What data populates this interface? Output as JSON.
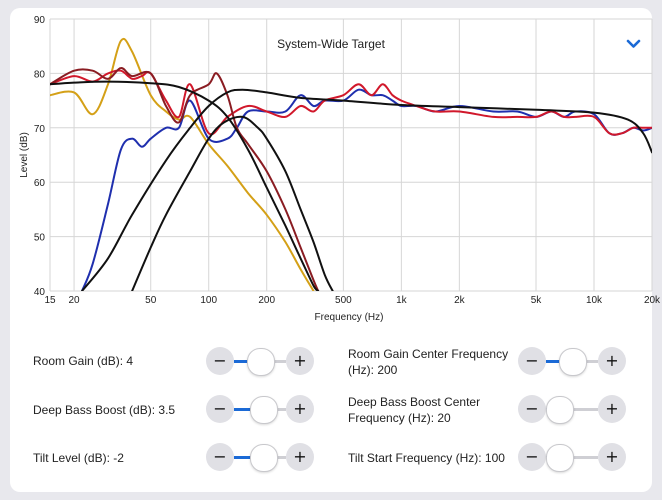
{
  "chart_data": {
    "type": "line",
    "title": "System-Wide Target",
    "xlabel": "Frequency (Hz)",
    "ylabel": "Level (dB)",
    "xscale": "log",
    "xlim": [
      15,
      20000
    ],
    "ylim": [
      40,
      90
    ],
    "x_ticks": [
      15,
      20,
      50,
      100,
      200,
      500,
      1000,
      2000,
      5000,
      10000,
      20000
    ],
    "x_tick_labels": [
      "15",
      "20",
      "50",
      "100",
      "200",
      "500",
      "1k",
      "2k",
      "5k",
      "10k",
      "20k"
    ],
    "y_ticks": [
      40,
      50,
      60,
      70,
      80,
      90
    ],
    "y_tick_labels": [
      "40",
      "50",
      "60",
      "70",
      "80",
      "90"
    ],
    "grid": true,
    "series": [
      {
        "name": "gold",
        "color": "#d4a017",
        "points": [
          [
            15,
            76
          ],
          [
            20,
            76.5
          ],
          [
            25,
            72.5
          ],
          [
            30,
            78
          ],
          [
            35,
            86
          ],
          [
            40,
            84
          ],
          [
            50,
            76
          ],
          [
            60,
            73
          ],
          [
            70,
            71.5
          ],
          [
            80,
            72
          ],
          [
            100,
            67
          ],
          [
            125,
            63
          ],
          [
            160,
            58
          ],
          [
            200,
            54
          ],
          [
            250,
            49
          ],
          [
            300,
            44
          ],
          [
            350,
            40
          ]
        ]
      },
      {
        "name": "blue",
        "color": "#1f2fae",
        "points": [
          [
            22,
            40
          ],
          [
            25,
            45
          ],
          [
            30,
            56
          ],
          [
            35,
            66
          ],
          [
            40,
            68
          ],
          [
            45,
            66.5
          ],
          [
            50,
            68
          ],
          [
            60,
            70
          ],
          [
            70,
            70
          ],
          [
            80,
            75
          ],
          [
            100,
            68
          ],
          [
            125,
            68
          ],
          [
            140,
            70
          ],
          [
            160,
            73
          ],
          [
            200,
            73
          ],
          [
            250,
            73
          ],
          [
            300,
            76
          ],
          [
            350,
            74
          ],
          [
            400,
            75
          ],
          [
            500,
            75
          ],
          [
            600,
            77
          ],
          [
            700,
            76
          ],
          [
            800,
            76
          ],
          [
            900,
            75
          ],
          [
            1000,
            74
          ],
          [
            1200,
            74
          ],
          [
            1500,
            73
          ],
          [
            2000,
            74
          ],
          [
            3000,
            73
          ],
          [
            4000,
            73
          ],
          [
            5000,
            72
          ],
          [
            6000,
            73
          ],
          [
            7000,
            72
          ],
          [
            8000,
            73
          ],
          [
            10000,
            72.5
          ],
          [
            12000,
            69
          ],
          [
            14000,
            69
          ],
          [
            16000,
            70
          ],
          [
            18000,
            69.5
          ],
          [
            20000,
            70
          ]
        ]
      },
      {
        "name": "red",
        "color": "#d1182b",
        "points": [
          [
            15,
            78
          ],
          [
            20,
            79.5
          ],
          [
            25,
            78.5
          ],
          [
            30,
            80
          ],
          [
            35,
            80.5
          ],
          [
            40,
            79
          ],
          [
            45,
            79.5
          ],
          [
            50,
            80
          ],
          [
            60,
            75
          ],
          [
            70,
            72
          ],
          [
            80,
            78
          ],
          [
            100,
            69
          ],
          [
            125,
            72
          ],
          [
            160,
            74
          ],
          [
            200,
            73
          ],
          [
            250,
            72
          ],
          [
            300,
            74
          ],
          [
            350,
            73
          ],
          [
            400,
            75
          ],
          [
            500,
            76
          ],
          [
            600,
            78
          ],
          [
            700,
            76
          ],
          [
            800,
            78
          ],
          [
            900,
            76
          ],
          [
            1000,
            75
          ],
          [
            1200,
            74
          ],
          [
            1500,
            73
          ],
          [
            2000,
            73
          ],
          [
            3000,
            72
          ],
          [
            4000,
            72
          ],
          [
            5000,
            72
          ],
          [
            6000,
            73
          ],
          [
            7000,
            72
          ],
          [
            8000,
            72
          ],
          [
            10000,
            72
          ],
          [
            12000,
            69
          ],
          [
            14000,
            69
          ],
          [
            16000,
            70
          ],
          [
            18000,
            70
          ],
          [
            20000,
            70
          ]
        ]
      },
      {
        "name": "darkred",
        "color": "#8a1c22",
        "points": [
          [
            15,
            78
          ],
          [
            20,
            80.5
          ],
          [
            25,
            80.5
          ],
          [
            30,
            79
          ],
          [
            35,
            81
          ],
          [
            40,
            79.5
          ],
          [
            50,
            80
          ],
          [
            60,
            74
          ],
          [
            70,
            71
          ],
          [
            80,
            76
          ],
          [
            100,
            78
          ],
          [
            110,
            80
          ],
          [
            125,
            76
          ],
          [
            140,
            70
          ],
          [
            160,
            67
          ],
          [
            200,
            62
          ],
          [
            250,
            55
          ],
          [
            300,
            48
          ],
          [
            350,
            42
          ],
          [
            370,
            40
          ]
        ]
      },
      {
        "name": "target-low",
        "color": "#111111",
        "points": [
          [
            22,
            40
          ],
          [
            30,
            46
          ],
          [
            40,
            54
          ],
          [
            60,
            64
          ],
          [
            80,
            70
          ],
          [
            100,
            74
          ],
          [
            125,
            76.5
          ],
          [
            150,
            77
          ],
          [
            200,
            76.5
          ],
          [
            300,
            75.5
          ],
          [
            500,
            75
          ],
          [
            1000,
            74.2
          ],
          [
            2000,
            73.8
          ],
          [
            5000,
            73.3
          ],
          [
            10000,
            72.8
          ],
          [
            15000,
            71.5
          ],
          [
            18000,
            69
          ],
          [
            20000,
            65.5
          ]
        ]
      },
      {
        "name": "target-high",
        "color": "#111111",
        "points": [
          [
            15,
            78
          ],
          [
            20,
            78.3
          ],
          [
            30,
            78.5
          ],
          [
            50,
            78.2
          ],
          [
            70,
            77.5
          ],
          [
            100,
            75
          ],
          [
            125,
            72
          ],
          [
            160,
            66
          ],
          [
            200,
            59
          ],
          [
            250,
            52
          ],
          [
            300,
            46
          ],
          [
            350,
            41
          ],
          [
            370,
            40
          ]
        ]
      },
      {
        "name": "target-mid",
        "color": "#111111",
        "points": [
          [
            40,
            40
          ],
          [
            50,
            48
          ],
          [
            60,
            54
          ],
          [
            80,
            62
          ],
          [
            100,
            68
          ],
          [
            120,
            71
          ],
          [
            150,
            72
          ],
          [
            180,
            70
          ],
          [
            200,
            68
          ],
          [
            250,
            62
          ],
          [
            300,
            55
          ],
          [
            350,
            49
          ],
          [
            400,
            43
          ],
          [
            440,
            40
          ]
        ]
      }
    ]
  },
  "chart": {
    "dropdown_icon": "chevron-down-icon",
    "accent": "#1b6ad6"
  },
  "controls": [
    {
      "id": "room-gain",
      "label": "Room Gain (dB): 4",
      "value_fraction": 0.5
    },
    {
      "id": "room-gain-center",
      "label": "Room Gain Center Frequency (Hz): 200",
      "value_fraction": 0.5
    },
    {
      "id": "deep-bass-boost",
      "label": "Deep Bass Boost (dB): 3.5",
      "value_fraction": 0.55
    },
    {
      "id": "deep-bass-boost-center",
      "label": "Deep Bass Boost Center Frequency (Hz): 20",
      "value_fraction": 0.25
    },
    {
      "id": "tilt-level",
      "label": "Tilt Level (dB): -2",
      "value_fraction": 0.55
    },
    {
      "id": "tilt-start-frequency",
      "label": "Tilt Start Frequency (Hz): 100",
      "value_fraction": 0.25
    }
  ],
  "buttons": {
    "minus": "−",
    "plus": "+"
  }
}
